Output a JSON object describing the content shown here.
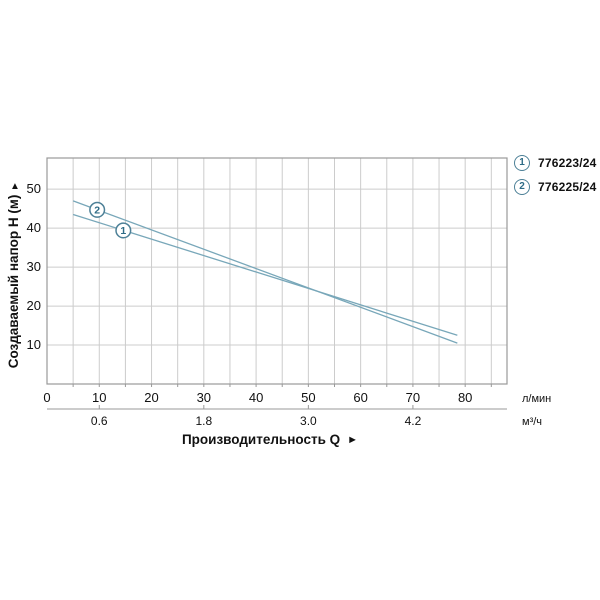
{
  "chart_data": {
    "type": "line",
    "title": "",
    "xlabel": "Производительность Q",
    "xlabel_arrow": "►",
    "ylabel": "Создаваемый напор H (м)",
    "ylabel_arrow": "▲",
    "grid": true,
    "legend_position": "top-right-outside",
    "x_axis": {
      "unit_primary": "л/мин",
      "unit_secondary": "м³/ч",
      "range": [
        0,
        88
      ],
      "grid_step": 5,
      "tick_labels": [
        0,
        10,
        20,
        30,
        40,
        50,
        60,
        70,
        80
      ],
      "secondary_ticks": [
        {
          "label": "0.6",
          "at": 10
        },
        {
          "label": "1.8",
          "at": 30
        },
        {
          "label": "3.0",
          "at": 50
        },
        {
          "label": "4.2",
          "at": 70
        }
      ]
    },
    "y_axis": {
      "range": [
        0,
        58
      ],
      "grid_step": 10,
      "tick_labels": [
        10,
        20,
        30,
        40,
        50
      ]
    },
    "series": [
      {
        "id": "1",
        "label": "776223/24",
        "points": [
          [
            5,
            43.5
          ],
          [
            78.5,
            12.5
          ]
        ],
        "marker": [
          14.6,
          39.4
        ]
      },
      {
        "id": "2",
        "label": "776225/24",
        "points": [
          [
            5,
            47.0
          ],
          [
            78.5,
            10.5
          ]
        ],
        "marker": [
          9.6,
          44.7
        ]
      }
    ]
  },
  "colors": {
    "background": "#ffffff",
    "line": "#78a7b9",
    "marker_stroke": "#4d8097",
    "marker_text": "#2e6b86",
    "grid": "#cccccc",
    "plot_border": "#999999",
    "axis_line": "#999999",
    "text": "#111111"
  }
}
